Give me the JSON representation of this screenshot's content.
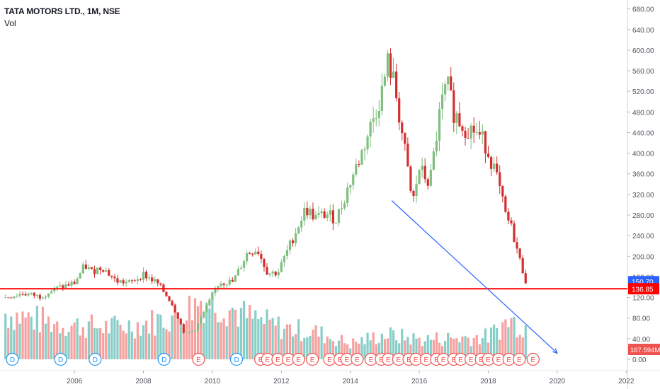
{
  "chart_data": {
    "type": "candlestick",
    "symbol_title": "TATA MOTORS LTD., 1M, NSE",
    "volume_label": "Vol",
    "timeframe": "1M",
    "x_axis": {
      "start": 2004.0,
      "end": 2023.0,
      "tick_labels": [
        "2006",
        "2008",
        "2010",
        "2012",
        "2014",
        "2016",
        "2018",
        "2020",
        "2022"
      ]
    },
    "price_axis": {
      "min": 0,
      "max": 680,
      "tick_labels": [
        "0.00",
        "40.00",
        "80.00",
        "120.00",
        "160.00",
        "200.00",
        "240.00",
        "280.00",
        "320.00",
        "360.00",
        "400.00",
        "440.00",
        "480.00",
        "520.00",
        "560.00",
        "600.00",
        "640.00",
        "680.00"
      ]
    },
    "up_color": "#26a69a",
    "down_color": "#ef5350",
    "candle_up_color": "#7fbf7f",
    "candle_down_color": "#d32f2f",
    "close_path": [
      [
        2004.0,
        120
      ],
      [
        2004.5,
        128
      ],
      [
        2005.0,
        122
      ],
      [
        2005.5,
        138
      ],
      [
        2006.0,
        148
      ],
      [
        2006.3,
        182
      ],
      [
        2006.5,
        170
      ],
      [
        2006.8,
        180
      ],
      [
        2007.2,
        152
      ],
      [
        2007.6,
        148
      ],
      [
        2008.0,
        165
      ],
      [
        2008.4,
        148
      ],
      [
        2008.8,
        112
      ],
      [
        2009.0,
        82
      ],
      [
        2009.2,
        48
      ],
      [
        2009.5,
        58
      ],
      [
        2009.9,
        110
      ],
      [
        2010.2,
        150
      ],
      [
        2010.6,
        150
      ],
      [
        2011.0,
        205
      ],
      [
        2011.3,
        215
      ],
      [
        2011.6,
        168
      ],
      [
        2011.9,
        168
      ],
      [
        2012.3,
        230
      ],
      [
        2012.7,
        292
      ],
      [
        2013.0,
        275
      ],
      [
        2013.3,
        282
      ],
      [
        2013.6,
        272
      ],
      [
        2014.0,
        345
      ],
      [
        2014.3,
        395
      ],
      [
        2014.6,
        455
      ],
      [
        2014.9,
        515
      ],
      [
        2015.1,
        580
      ],
      [
        2015.3,
        525
      ],
      [
        2015.6,
        395
      ],
      [
        2015.8,
        300
      ],
      [
        2016.0,
        370
      ],
      [
        2016.3,
        340
      ],
      [
        2016.6,
        480
      ],
      [
        2016.8,
        535
      ],
      [
        2017.0,
        480
      ],
      [
        2017.3,
        450
      ],
      [
        2017.6,
        445
      ],
      [
        2017.9,
        420
      ],
      [
        2018.2,
        365
      ],
      [
        2018.5,
        280
      ],
      [
        2018.7,
        250
      ],
      [
        2018.9,
        195
      ],
      [
        2019.1,
        150
      ]
    ],
    "current_price": "150.70",
    "support_level": "136.85",
    "support_value": 136.85,
    "volume_value": "167.594M",
    "trendline": {
      "from": [
        2015.2,
        308
      ],
      "to": [
        2020.0,
        12
      ]
    },
    "volume_profile": [
      [
        2004.0,
        65
      ],
      [
        2005.0,
        55
      ],
      [
        2006.0,
        48
      ],
      [
        2007.0,
        45
      ],
      [
        2008.0,
        50
      ],
      [
        2009.0,
        62
      ],
      [
        2009.7,
        85
      ],
      [
        2010.3,
        78
      ],
      [
        2011.0,
        60
      ],
      [
        2012.0,
        45
      ],
      [
        2013.0,
        38
      ],
      [
        2014.0,
        22
      ],
      [
        2015.0,
        35
      ],
      [
        2016.0,
        28
      ],
      [
        2017.0,
        30
      ],
      [
        2018.0,
        32
      ],
      [
        2018.6,
        55
      ],
      [
        2019.0,
        48
      ]
    ],
    "events": [
      {
        "label": "D",
        "year": 2004.2
      },
      {
        "label": "D",
        "year": 2005.6
      },
      {
        "label": "D",
        "year": 2006.6
      },
      {
        "label": "D",
        "year": 2008.6
      },
      {
        "label": "E",
        "year": 2009.6
      },
      {
        "label": "D",
        "year": 2010.7
      },
      {
        "label": "E",
        "year": 2011.4
      },
      {
        "label": "E",
        "year": 2011.6
      },
      {
        "label": "E",
        "year": 2011.9
      },
      {
        "label": "E",
        "year": 2012.2
      },
      {
        "label": "E",
        "year": 2012.5
      },
      {
        "label": "E",
        "year": 2012.9
      },
      {
        "label": "E",
        "year": 2013.4
      },
      {
        "label": "E",
        "year": 2013.7
      },
      {
        "label": "E",
        "year": 2013.9
      },
      {
        "label": "E",
        "year": 2014.2
      },
      {
        "label": "E",
        "year": 2014.6
      },
      {
        "label": "E",
        "year": 2014.9
      },
      {
        "label": "E",
        "year": 2015.1
      },
      {
        "label": "E",
        "year": 2015.4
      },
      {
        "label": "E",
        "year": 2015.7
      },
      {
        "label": "E",
        "year": 2015.9
      },
      {
        "label": "E",
        "year": 2016.2
      },
      {
        "label": "E",
        "year": 2016.5
      },
      {
        "label": "E",
        "year": 2016.7
      },
      {
        "label": "E",
        "year": 2017.0
      },
      {
        "label": "E",
        "year": 2017.2
      },
      {
        "label": "E",
        "year": 2017.5
      },
      {
        "label": "E",
        "year": 2017.8
      },
      {
        "label": "E",
        "year": 2018.0
      },
      {
        "label": "E",
        "year": 2018.3
      },
      {
        "label": "E",
        "year": 2018.6
      },
      {
        "label": "E",
        "year": 2018.9
      },
      {
        "label": "E",
        "year": 2019.3
      }
    ]
  }
}
